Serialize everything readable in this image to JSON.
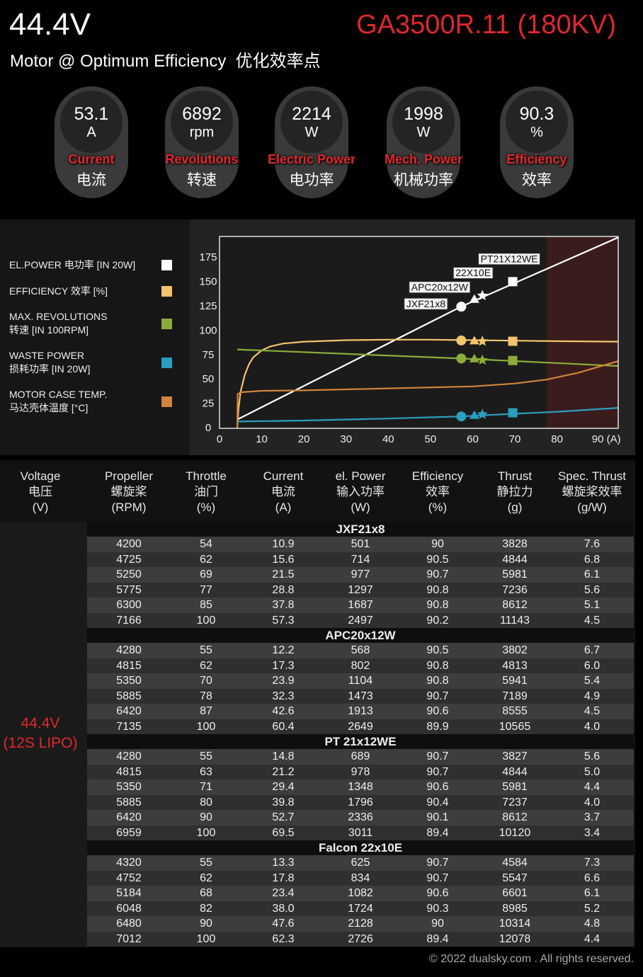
{
  "header": {
    "voltage": "44.4V",
    "model": "GA3500R.11 (180KV)",
    "subtitle": "Motor @ Optimum Efficiency  优化效率点"
  },
  "gauges": [
    {
      "value": 53.1,
      "unit": "A",
      "label": "Current",
      "label_cn": "电流"
    },
    {
      "value": 6892,
      "unit": "rpm",
      "label": "Revolutions",
      "label_cn": "转速"
    },
    {
      "value": 2214,
      "unit": "W",
      "label": "Electric Power",
      "label_cn": "电功率"
    },
    {
      "value": 1998,
      "unit": "W",
      "label": "Mech. Power",
      "label_cn": "机械功率"
    },
    {
      "value": 90.3,
      "unit": "%",
      "label": "Efficiency",
      "label_cn": "效率"
    }
  ],
  "chart_data": {
    "type": "line",
    "xlim": [
      0,
      94.5
    ],
    "ylim": [
      0,
      197
    ],
    "xticks": [
      0,
      10,
      20,
      30,
      40,
      50,
      60,
      70,
      80,
      {
        "value": 90,
        "label": "90 (A)"
      }
    ],
    "yticks": [
      0,
      25,
      50,
      75,
      100,
      125,
      150,
      175
    ],
    "grid": false,
    "shade": {
      "from": 77.5,
      "to": 94.5,
      "color": "#3a1c1c"
    },
    "markers": [
      {
        "label": "JXF21x8",
        "shape": "circle",
        "x": 57.3
      },
      {
        "label": "APC20x12W",
        "shape": "triangle",
        "x": 60.4
      },
      {
        "label": "22X10E",
        "shape": "star",
        "x": 62.3
      },
      {
        "label": "PT21X12WE",
        "shape": "square",
        "x": 69.5
      }
    ],
    "series": [
      {
        "name": "EL.POWER 电功率 [IN 20W]",
        "color": "#ffffff",
        "x": [
          4.2,
          57.3,
          94.5
        ],
        "values": [
          9,
          125,
          196
        ],
        "points": [
          124.9,
          132.5,
          136.3,
          150.6
        ]
      },
      {
        "name": "EFFICIENCY 效率 [%]",
        "color": "#f2c46d",
        "x": [
          4.2,
          4.5,
          5,
          6,
          7,
          8,
          10,
          12,
          15,
          20,
          30,
          40,
          50,
          60,
          70,
          80,
          94.5
        ],
        "values": [
          0,
          20,
          38,
          55,
          66,
          73,
          80,
          84,
          87,
          89,
          90.5,
          91,
          91,
          90.5,
          90,
          89.5,
          89
        ],
        "points": [
          90.2,
          89.9,
          89.4,
          89.4
        ]
      },
      {
        "name": "MAX. REVOLUTIONS\n转速 [IN 100RPM]",
        "color": "#8cac3a",
        "x": [
          4.2,
          57.3,
          94.5
        ],
        "values": [
          81,
          71.7,
          64
        ],
        "points": [
          71.7,
          71.4,
          70.1,
          69.6
        ]
      },
      {
        "name": "WASTE POWER\n损耗功率 [IN 20W]",
        "color": "#2a9ec0",
        "x": [
          4.2,
          20,
          40,
          57.3,
          70,
          80,
          94.5
        ],
        "values": [
          7,
          8,
          10,
          12.2,
          15,
          17,
          21
        ],
        "points": [
          12.2,
          13.4,
          14.4,
          16.0
        ]
      },
      {
        "name": "MOTOR CASE TEMP.\n马达壳体温度 [°C]",
        "color": "#d0843c",
        "x": [
          4.2,
          4.3,
          5,
          10,
          20,
          40,
          60,
          70,
          77.5,
          85,
          94.5
        ],
        "values": [
          0,
          35,
          37,
          38.5,
          39,
          41,
          43,
          46,
          50,
          57,
          69
        ]
      }
    ]
  },
  "table": {
    "columns": [
      "Voltage\n电压\n(V)",
      "Propeller\n螺旋桨\n(RPM)",
      "Throttle\n油门\n(%)",
      "Current\n电流\n(A)",
      "el. Power\n输入功率\n(W)",
      "Efficiency\n效率\n(%)",
      "Thrust\n静拉力\n(g)",
      "Spec. Thrust\n螺旋桨效率\n(g/W)"
    ],
    "voltage": "44.4V\n(12S LIPO)",
    "groups": [
      {
        "name": "JXF21x8",
        "rows": [
          [
            "4200",
            "54",
            "10.9",
            "501",
            "90",
            "3828",
            "7.6"
          ],
          [
            "4725",
            "62",
            "15.6",
            "714",
            "90.5",
            "4844",
            "6.8"
          ],
          [
            "5250",
            "69",
            "21.5",
            "977",
            "90.7",
            "5981",
            "6.1"
          ],
          [
            "5775",
            "77",
            "28.8",
            "1297",
            "90.8",
            "7236",
            "5.6"
          ],
          [
            "6300",
            "85",
            "37.8",
            "1687",
            "90.8",
            "8612",
            "5.1"
          ],
          [
            "7166",
            "100",
            "57.3",
            "2497",
            "90.2",
            "11143",
            "4.5"
          ]
        ]
      },
      {
        "name": "APC20x12W",
        "rows": [
          [
            "4280",
            "55",
            "12.2",
            "568",
            "90.5",
            "3802",
            "6.7"
          ],
          [
            "4815",
            "62",
            "17.3",
            "802",
            "90.8",
            "4813",
            "6.0"
          ],
          [
            "5350",
            "70",
            "23.9",
            "1104",
            "90.8",
            "5941",
            "5.4"
          ],
          [
            "5885",
            "78",
            "32.3",
            "1473",
            "90.7",
            "7189",
            "4.9"
          ],
          [
            "6420",
            "87",
            "42.6",
            "1913",
            "90.6",
            "8555",
            "4.5"
          ],
          [
            "7135",
            "100",
            "60.4",
            "2649",
            "89.9",
            "10565",
            "4.0"
          ]
        ]
      },
      {
        "name": "PT 21x12WE",
        "rows": [
          [
            "4280",
            "55",
            "14.8",
            "689",
            "90.7",
            "3827",
            "5.6"
          ],
          [
            "4815",
            "63",
            "21.2",
            "978",
            "90.7",
            "4844",
            "5.0"
          ],
          [
            "5350",
            "71",
            "29.4",
            "1348",
            "90.6",
            "5981",
            "4.4"
          ],
          [
            "5885",
            "80",
            "39.8",
            "1796",
            "90.4",
            "7237",
            "4.0"
          ],
          [
            "6420",
            "90",
            "52.7",
            "2336",
            "90.1",
            "8612",
            "3.7"
          ],
          [
            "6959",
            "100",
            "69.5",
            "3011",
            "89.4",
            "10120",
            "3.4"
          ]
        ]
      },
      {
        "name": "Falcon 22x10E",
        "rows": [
          [
            "4320",
            "55",
            "13.3",
            "625",
            "90.7",
            "4584",
            "7.3"
          ],
          [
            "4752",
            "62",
            "17.8",
            "834",
            "90.7",
            "5547",
            "6.6"
          ],
          [
            "5184",
            "68",
            "23.4",
            "1082",
            "90.6",
            "6601",
            "6.1"
          ],
          [
            "6048",
            "82",
            "38.0",
            "1724",
            "90.3",
            "8985",
            "5.2"
          ],
          [
            "6480",
            "90",
            "47.6",
            "2128",
            "90",
            "10314",
            "4.8"
          ],
          [
            "7012",
            "100",
            "62.3",
            "2726",
            "89.4",
            "12078",
            "4.4"
          ]
        ]
      }
    ]
  },
  "footer": "© 2022 dualsky.com . All rights reserved."
}
